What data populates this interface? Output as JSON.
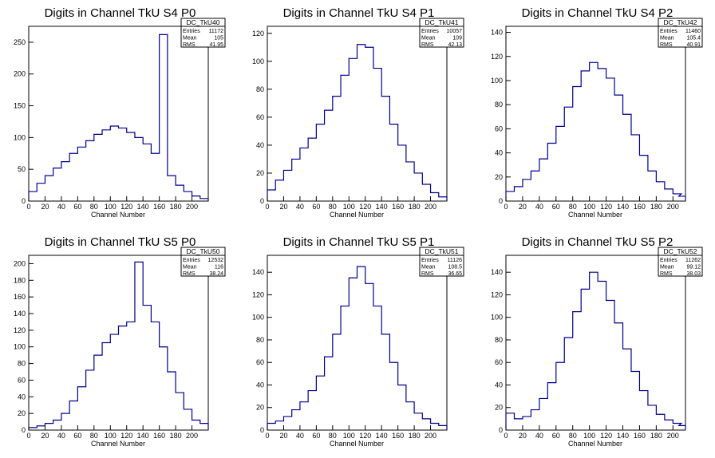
{
  "figure": {
    "background": "#ffffff",
    "line_color": "#00008b"
  },
  "chart_data": [
    {
      "type": "bar",
      "title": "Digits in Channel TkU S4 P0",
      "xlabel": "Channel Number",
      "ylabel": "",
      "xlim": [
        0,
        220
      ],
      "ylim": [
        0,
        275
      ],
      "xticks": [
        0,
        20,
        40,
        60,
        80,
        100,
        120,
        140,
        160,
        180,
        200
      ],
      "yticks": [
        0,
        50,
        100,
        150,
        200,
        250
      ],
      "stats": {
        "name": "DC_TkU40",
        "entries": "11172",
        "mean": "105",
        "rms": "41.95"
      },
      "bin_centers": [
        5,
        15,
        25,
        35,
        45,
        55,
        65,
        75,
        85,
        95,
        105,
        115,
        125,
        135,
        145,
        155,
        165,
        175,
        185,
        195,
        205,
        215
      ],
      "values": [
        15,
        28,
        40,
        52,
        62,
        75,
        85,
        95,
        105,
        112,
        118,
        115,
        108,
        100,
        90,
        75,
        262,
        40,
        25,
        15,
        8,
        4
      ]
    },
    {
      "type": "bar",
      "title": "Digits in Channel TkU S4 P1",
      "xlabel": "Channel Number",
      "ylabel": "",
      "xlim": [
        0,
        220
      ],
      "ylim": [
        0,
        125
      ],
      "xticks": [
        0,
        20,
        40,
        60,
        80,
        100,
        120,
        140,
        160,
        180,
        200
      ],
      "yticks": [
        0,
        20,
        40,
        60,
        80,
        100,
        120
      ],
      "stats": {
        "name": "DC_TkU41",
        "entries": "10057",
        "mean": "109",
        "rms": "42.13"
      },
      "bin_centers": [
        5,
        15,
        25,
        35,
        45,
        55,
        65,
        75,
        85,
        95,
        105,
        115,
        125,
        135,
        145,
        155,
        165,
        175,
        185,
        195,
        205,
        215
      ],
      "values": [
        8,
        15,
        22,
        30,
        38,
        45,
        55,
        65,
        75,
        90,
        102,
        112,
        110,
        95,
        75,
        55,
        40,
        28,
        20,
        12,
        6,
        3
      ]
    },
    {
      "type": "bar",
      "title": "Digits in Channel TkU S4 P2",
      "xlabel": "Channel Number",
      "ylabel": "",
      "xlim": [
        0,
        215
      ],
      "ylim": [
        0,
        145
      ],
      "xticks": [
        0,
        20,
        40,
        60,
        80,
        100,
        120,
        140,
        160,
        180,
        200
      ],
      "yticks": [
        0,
        20,
        40,
        60,
        80,
        100,
        120,
        140
      ],
      "stats": {
        "name": "DC_TkU42",
        "entries": "11460",
        "mean": "105.4",
        "rms": "40.91"
      },
      "bin_centers": [
        5,
        15,
        25,
        35,
        45,
        55,
        65,
        75,
        85,
        95,
        105,
        115,
        125,
        135,
        145,
        155,
        165,
        175,
        185,
        195,
        205,
        212
      ],
      "values": [
        8,
        12,
        18,
        25,
        35,
        48,
        62,
        78,
        95,
        108,
        115,
        110,
        102,
        88,
        72,
        55,
        38,
        25,
        16,
        10,
        6,
        4
      ]
    },
    {
      "type": "bar",
      "title": "Digits in Channel TkU S5 P0",
      "xlabel": "Channel Number",
      "ylabel": "",
      "xlim": [
        0,
        220
      ],
      "ylim": [
        0,
        210
      ],
      "xticks": [
        0,
        20,
        40,
        60,
        80,
        100,
        120,
        140,
        160,
        180,
        200
      ],
      "yticks": [
        0,
        20,
        40,
        60,
        80,
        100,
        120,
        140,
        160,
        180,
        200
      ],
      "stats": {
        "name": "DC_TkU50",
        "entries": "12532",
        "mean": "116",
        "rms": "38.24"
      },
      "bin_centers": [
        5,
        15,
        25,
        35,
        45,
        55,
        65,
        75,
        85,
        95,
        105,
        115,
        125,
        135,
        145,
        155,
        165,
        175,
        185,
        195,
        205,
        215
      ],
      "values": [
        3,
        5,
        8,
        12,
        20,
        35,
        52,
        72,
        90,
        105,
        115,
        125,
        130,
        202,
        150,
        130,
        100,
        70,
        45,
        25,
        12,
        8
      ]
    },
    {
      "type": "bar",
      "title": "Digits in Channel TkU S5 P1",
      "xlabel": "Channel Number",
      "ylabel": "",
      "xlim": [
        0,
        220
      ],
      "ylim": [
        0,
        155
      ],
      "xticks": [
        0,
        20,
        40,
        60,
        80,
        100,
        120,
        140,
        160,
        180,
        200
      ],
      "yticks": [
        0,
        20,
        40,
        60,
        80,
        100,
        120,
        140
      ],
      "stats": {
        "name": "DC_TkU51",
        "entries": "11126",
        "mean": "108.5",
        "rms": "36.65"
      },
      "bin_centers": [
        5,
        15,
        25,
        35,
        45,
        55,
        65,
        75,
        85,
        95,
        105,
        115,
        125,
        135,
        145,
        155,
        165,
        175,
        185,
        195,
        205,
        215
      ],
      "values": [
        6,
        8,
        12,
        18,
        25,
        35,
        48,
        65,
        85,
        110,
        135,
        145,
        130,
        110,
        85,
        60,
        40,
        25,
        15,
        10,
        6,
        4
      ]
    },
    {
      "type": "bar",
      "title": "Digits in Channel TkU S5 P2",
      "xlabel": "Channel Number",
      "ylabel": "",
      "xlim": [
        0,
        215
      ],
      "ylim": [
        0,
        155
      ],
      "xticks": [
        0,
        20,
        40,
        60,
        80,
        100,
        120,
        140,
        160,
        180,
        200
      ],
      "yticks": [
        0,
        20,
        40,
        60,
        80,
        100,
        120,
        140
      ],
      "stats": {
        "name": "DC_TkU52",
        "entries": "11262",
        "mean": "99.12",
        "rms": "38.03"
      },
      "bin_centers": [
        5,
        15,
        25,
        35,
        45,
        55,
        65,
        75,
        85,
        95,
        105,
        115,
        125,
        135,
        145,
        155,
        165,
        175,
        185,
        195,
        205,
        212
      ],
      "values": [
        15,
        10,
        12,
        18,
        28,
        42,
        60,
        82,
        105,
        125,
        140,
        132,
        115,
        95,
        72,
        52,
        35,
        22,
        14,
        9,
        6,
        4
      ]
    }
  ],
  "stats_labels": {
    "entries": "Entries",
    "mean": "Mean",
    "rms": "RMS"
  }
}
